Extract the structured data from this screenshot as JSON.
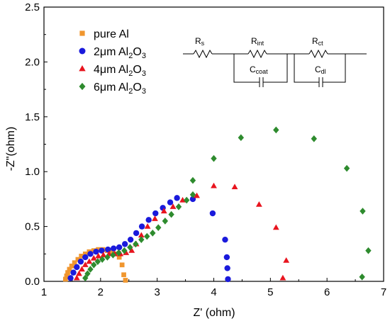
{
  "chart_data": {
    "type": "scatter",
    "xlabel": "Z' (ohm)",
    "ylabel": "-Z\"(ohm)",
    "xlim": [
      1,
      7
    ],
    "ylim": [
      0,
      2.5
    ],
    "x_ticks": [
      "1",
      "2",
      "3",
      "4",
      "5",
      "6",
      "7"
    ],
    "y_ticks": [
      "0.0",
      "0.5",
      "1.0",
      "1.5",
      "2.0",
      "2.5"
    ],
    "legend_position": "top-left",
    "series": [
      {
        "name_main": "pure Al",
        "name_sub": "",
        "name_tail": "",
        "color": "#f0962e",
        "marker": "square",
        "points": [
          [
            1.38,
            0.02
          ],
          [
            1.4,
            0.05
          ],
          [
            1.42,
            0.08
          ],
          [
            1.45,
            0.11
          ],
          [
            1.49,
            0.14
          ],
          [
            1.54,
            0.17
          ],
          [
            1.6,
            0.2
          ],
          [
            1.66,
            0.23
          ],
          [
            1.73,
            0.25
          ],
          [
            1.8,
            0.27
          ],
          [
            1.88,
            0.28
          ],
          [
            1.96,
            0.29
          ],
          [
            2.04,
            0.29
          ],
          [
            2.12,
            0.28
          ],
          [
            2.2,
            0.27
          ],
          [
            2.27,
            0.25
          ],
          [
            2.33,
            0.22
          ],
          [
            2.38,
            0.15
          ],
          [
            2.41,
            0.06
          ],
          [
            2.44,
            0.01
          ]
        ]
      },
      {
        "name_main": "2μm Al",
        "name_sub": "2",
        "name_tail": "O",
        "name_sub2": "3",
        "color": "#1a1adc",
        "marker": "circle",
        "points": [
          [
            1.47,
            0.03
          ],
          [
            1.52,
            0.08
          ],
          [
            1.58,
            0.13
          ],
          [
            1.65,
            0.18
          ],
          [
            1.73,
            0.22
          ],
          [
            1.82,
            0.25
          ],
          [
            1.92,
            0.27
          ],
          [
            2.02,
            0.28
          ],
          [
            2.13,
            0.29
          ],
          [
            2.23,
            0.3
          ],
          [
            2.33,
            0.31
          ],
          [
            2.43,
            0.34
          ],
          [
            2.53,
            0.38
          ],
          [
            2.63,
            0.44
          ],
          [
            2.73,
            0.5
          ],
          [
            2.85,
            0.56
          ],
          [
            2.97,
            0.62
          ],
          [
            3.1,
            0.67
          ],
          [
            3.23,
            0.72
          ],
          [
            3.35,
            0.76
          ],
          [
            3.63,
            0.75
          ],
          [
            3.98,
            0.62
          ],
          [
            4.2,
            0.38
          ],
          [
            4.23,
            0.22
          ],
          [
            4.24,
            0.12
          ],
          [
            4.25,
            0.02
          ]
        ]
      },
      {
        "name_main": "4μm Al",
        "name_sub": "2",
        "name_tail": "O",
        "name_sub2": "3",
        "color": "#e8141e",
        "marker": "triangle",
        "points": [
          [
            1.58,
            0.03
          ],
          [
            1.62,
            0.07
          ],
          [
            1.67,
            0.11
          ],
          [
            1.73,
            0.15
          ],
          [
            1.8,
            0.18
          ],
          [
            1.88,
            0.21
          ],
          [
            1.96,
            0.23
          ],
          [
            2.05,
            0.24
          ],
          [
            2.15,
            0.25
          ],
          [
            2.25,
            0.25
          ],
          [
            2.35,
            0.25
          ],
          [
            2.45,
            0.26
          ],
          [
            2.55,
            0.28
          ],
          [
            2.63,
            0.34
          ],
          [
            2.72,
            0.42
          ],
          [
            2.83,
            0.5
          ],
          [
            2.96,
            0.57
          ],
          [
            3.12,
            0.64
          ],
          [
            3.28,
            0.68
          ],
          [
            3.45,
            0.74
          ],
          [
            3.7,
            0.78
          ],
          [
            4.0,
            0.87
          ],
          [
            4.37,
            0.86
          ],
          [
            4.8,
            0.7
          ],
          [
            5.1,
            0.49
          ],
          [
            5.28,
            0.19
          ],
          [
            5.22,
            0.03
          ]
        ]
      },
      {
        "name_main": "6μm Al",
        "name_sub": "2",
        "name_tail": "O",
        "name_sub2": "3",
        "color": "#2e8b2e",
        "marker": "diamond",
        "points": [
          [
            1.73,
            0.03
          ],
          [
            1.77,
            0.07
          ],
          [
            1.82,
            0.11
          ],
          [
            1.88,
            0.15
          ],
          [
            1.95,
            0.18
          ],
          [
            2.03,
            0.2
          ],
          [
            2.12,
            0.22
          ],
          [
            2.22,
            0.24
          ],
          [
            2.32,
            0.26
          ],
          [
            2.42,
            0.28
          ],
          [
            2.52,
            0.31
          ],
          [
            2.62,
            0.34
          ],
          [
            2.72,
            0.38
          ],
          [
            2.82,
            0.41
          ],
          [
            2.92,
            0.44
          ],
          [
            3.02,
            0.49
          ],
          [
            3.14,
            0.55
          ],
          [
            3.25,
            0.61
          ],
          [
            3.38,
            0.68
          ],
          [
            3.52,
            0.74
          ],
          [
            3.63,
            0.79
          ],
          [
            3.63,
            0.92
          ],
          [
            4.0,
            1.12
          ],
          [
            4.48,
            1.31
          ],
          [
            5.1,
            1.38
          ],
          [
            5.77,
            1.3
          ],
          [
            6.35,
            1.03
          ],
          [
            6.63,
            0.64
          ],
          [
            6.73,
            0.28
          ],
          [
            6.62,
            0.04
          ]
        ]
      }
    ]
  },
  "circuit": {
    "rs_main": "R",
    "rs_sub": "s",
    "rint_main": "R",
    "rint_sub": "int",
    "rct_main": "R",
    "rct_sub": "ct",
    "ccoat_main": "C",
    "ccoat_sub": "coat",
    "cdl_main": "C",
    "cdl_sub": "dl"
  }
}
